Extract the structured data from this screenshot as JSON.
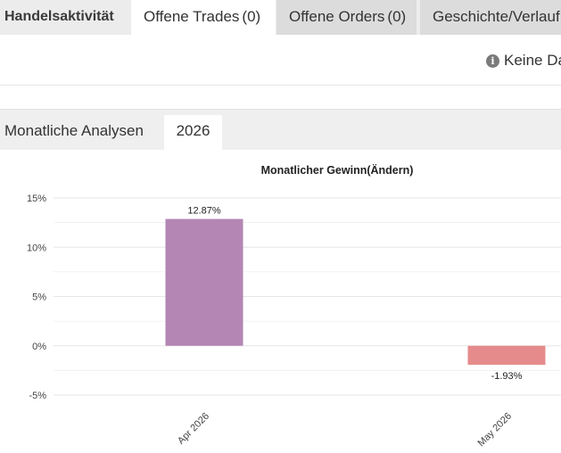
{
  "tabs": [
    {
      "label": "Handelsaktivität",
      "count": ""
    },
    {
      "label": "Offene Trades",
      "count": "(0)"
    },
    {
      "label": "Offene Orders",
      "count": "(0)"
    },
    {
      "label": "Geschichte/Verlauf",
      "count": ""
    }
  ],
  "info": {
    "icon": "info-icon",
    "message": "Keine Daten"
  },
  "analysis": {
    "title": "Monatliche Analysen",
    "year": "2026"
  },
  "colors": {
    "positive_bar": "#b386b4",
    "negative_bar": "#e68b8b",
    "grid": "#e6e6e6"
  },
  "chart_data": {
    "type": "bar",
    "title": "Monatlicher Gewinn(Ändern)",
    "categories": [
      "Apr 2026",
      "May 2026"
    ],
    "values": [
      12.87,
      -1.93
    ],
    "value_labels": [
      "12.87%",
      "-1.93%"
    ],
    "yticks": [
      15,
      10,
      5,
      0,
      -5
    ],
    "ytick_labels": [
      "15%",
      "10%",
      "5%",
      "0%",
      "-5%"
    ],
    "ylim": [
      -5,
      15
    ],
    "grid": true
  }
}
